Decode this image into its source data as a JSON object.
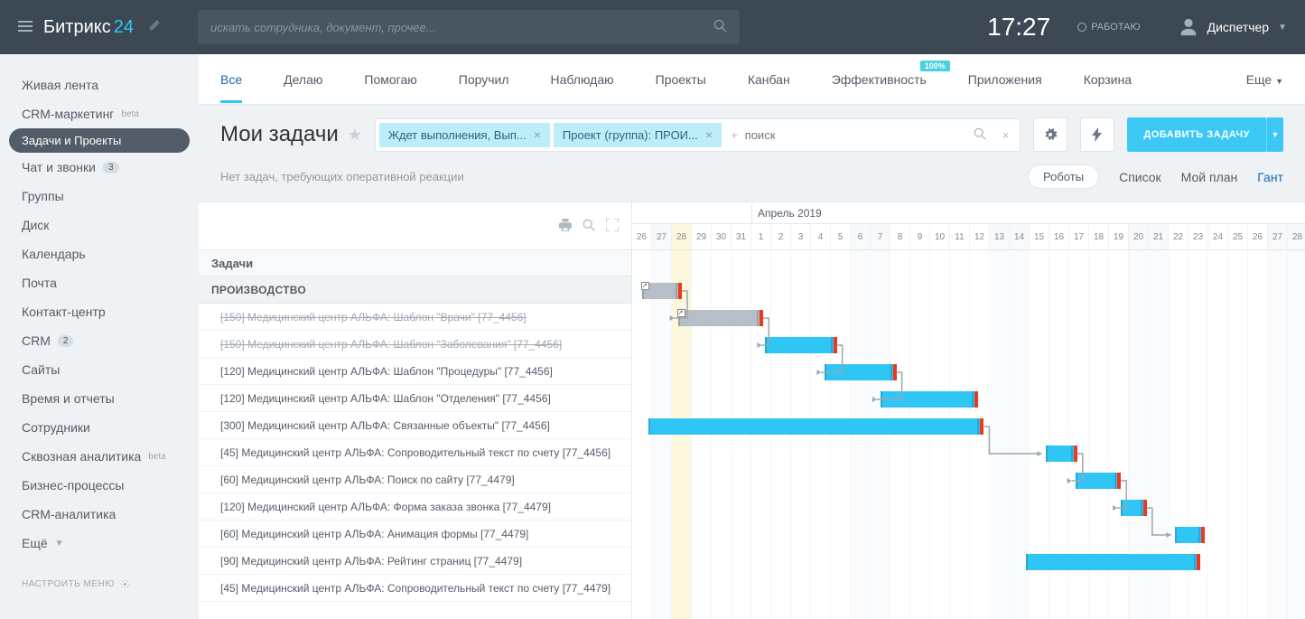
{
  "topbar": {
    "logo1": "Битрикс",
    "logo2": "24",
    "search_placeholder": "искать сотрудника, документ, прочее...",
    "time": "17:27",
    "work_status": "РАБОТАЮ",
    "user": "Диспетчер"
  },
  "sidebar": {
    "items": [
      {
        "label": "Живая лента"
      },
      {
        "label": "CRM-маркетинг",
        "beta": "beta"
      },
      {
        "label": "Задачи и Проекты",
        "active": true
      },
      {
        "label": "Чат и звонки",
        "badge": "3"
      },
      {
        "label": "Группы"
      },
      {
        "label": "Диск"
      },
      {
        "label": "Календарь"
      },
      {
        "label": "Почта"
      },
      {
        "label": "Контакт-центр"
      },
      {
        "label": "CRM",
        "badge": "2"
      },
      {
        "label": "Сайты"
      },
      {
        "label": "Время и отчеты"
      },
      {
        "label": "Сотрудники"
      },
      {
        "label": "Сквозная аналитика",
        "beta": "beta"
      },
      {
        "label": "Бизнес-процессы"
      },
      {
        "label": "CRM-аналитика"
      },
      {
        "label": "Ещё"
      }
    ],
    "footer": "НАСТРОИТЬ МЕНЮ"
  },
  "tabs": [
    {
      "label": "Все",
      "active": true
    },
    {
      "label": "Делаю"
    },
    {
      "label": "Помогаю"
    },
    {
      "label": "Поручил"
    },
    {
      "label": "Наблюдаю"
    },
    {
      "label": "Проекты"
    },
    {
      "label": "Канбан"
    },
    {
      "label": "Эффективность",
      "pct": "100%"
    },
    {
      "label": "Приложения"
    },
    {
      "label": "Корзина"
    }
  ],
  "tabs_more": "Еще",
  "toolbar": {
    "title": "Мои задачи",
    "chip1": "Ждет выполнения, Вып...",
    "chip2": "Проект (группа): ПРОИ...",
    "search_placeholder": "поиск",
    "add_btn": "ДОБАВИТЬ ЗАДАЧУ"
  },
  "subhead": {
    "text": "Нет задач, требующих оперативной реакции",
    "robots": "Роботы",
    "v1": "Список",
    "v2": "Мой план",
    "v3": "Гант"
  },
  "gantt": {
    "left_title": "Задачи",
    "group": "ПРОИЗВОДСТВО",
    "tasks": [
      {
        "label": "[150] Медицинский центр АЛЬФА: Шаблон \"Врачи\" [77_4456]",
        "done": true
      },
      {
        "label": "[150] Медицинский центр АЛЬФА: Шаблон \"Заболевания\" [77_4456]",
        "done": true
      },
      {
        "label": "[120] Медицинский центр АЛЬФА: Шаблон \"Процедуры\" [77_4456]"
      },
      {
        "label": "[120] Медицинский центр АЛЬФА: Шаблон \"Отделения\" [77_4456]"
      },
      {
        "label": "[300] Медицинский центр АЛЬФА: Связанные объекты\" [77_4456]"
      },
      {
        "label": "[45] Медицинский центр АЛЬФА: Сопроводительный текст по счету [77_4456]"
      },
      {
        "label": "[60] Медицинский центр АЛЬФА: Поиск по сайту [77_4479]"
      },
      {
        "label": "[120] Медицинский центр АЛЬФА: Форма заказа звонка [77_4479]"
      },
      {
        "label": "[60] Медицинский центр АЛЬФА: Анимация формы [77_4479]"
      },
      {
        "label": "[90] Медицинский центр АЛЬФА: Рейтинг страниц [77_4479]"
      },
      {
        "label": "[45] Медицинский центр АЛЬФА: Сопроводительный текст по счету [77_4479]"
      }
    ],
    "month_label": "Апрель 2019",
    "day_width": 22,
    "days": [
      {
        "n": 26
      },
      {
        "n": 27,
        "wkd": true
      },
      {
        "n": 28,
        "wkd": true,
        "today": true
      },
      {
        "n": 29
      },
      {
        "n": 30
      },
      {
        "n": 31
      },
      {
        "n": 1
      },
      {
        "n": 2
      },
      {
        "n": 3
      },
      {
        "n": 4
      },
      {
        "n": 5
      },
      {
        "n": 6,
        "wkd": true
      },
      {
        "n": 7,
        "wkd": true
      },
      {
        "n": 8
      },
      {
        "n": 9
      },
      {
        "n": 10
      },
      {
        "n": 11
      },
      {
        "n": 12
      },
      {
        "n": 13,
        "wkd": true
      },
      {
        "n": 14,
        "wkd": true
      },
      {
        "n": 15
      },
      {
        "n": 16
      },
      {
        "n": 17
      },
      {
        "n": 18
      },
      {
        "n": 19
      },
      {
        "n": 20,
        "wkd": true
      },
      {
        "n": 21,
        "wkd": true
      },
      {
        "n": 22
      },
      {
        "n": 23
      },
      {
        "n": 24
      },
      {
        "n": 25
      },
      {
        "n": 26
      },
      {
        "n": 27,
        "wkd": true
      },
      {
        "n": 28,
        "wkd": true
      }
    ],
    "bars": [
      {
        "row": 0,
        "start": 0.5,
        "span": 2,
        "color": "grey",
        "link_icon": true
      },
      {
        "row": 1,
        "start": 2.3,
        "span": 4.3,
        "color": "grey",
        "link_icon": true
      },
      {
        "row": 2,
        "start": 6.7,
        "span": 3.6,
        "color": "blue"
      },
      {
        "row": 3,
        "start": 9.7,
        "span": 3.6,
        "color": "blue"
      },
      {
        "row": 4,
        "start": 12.5,
        "span": 4.9,
        "color": "blue"
      },
      {
        "row": 5,
        "start": 0.8,
        "span": 16.9,
        "color": "blue"
      },
      {
        "row": 6,
        "start": 20.8,
        "span": 1.6,
        "color": "blue"
      },
      {
        "row": 7,
        "start": 22.3,
        "span": 2.3,
        "color": "blue"
      },
      {
        "row": 8,
        "start": 24.6,
        "span": 1.3,
        "color": "blue"
      },
      {
        "row": 9,
        "start": 27.3,
        "span": 1.5,
        "color": "blue"
      },
      {
        "row": 10,
        "start": 19.8,
        "span": 8.8,
        "color": "blue"
      }
    ],
    "connectors": [
      {
        "from": 0,
        "to": 1
      },
      {
        "from": 1,
        "to": 2
      },
      {
        "from": 2,
        "to": 3
      },
      {
        "from": 3,
        "to": 4
      },
      {
        "from": 5,
        "to": 6
      },
      {
        "from": 6,
        "to": 7
      },
      {
        "from": 7,
        "to": 8
      },
      {
        "from": 8,
        "to": 9
      }
    ],
    "colors": {
      "blue": "#2fc6f6",
      "grey": "#b6bec7",
      "end": "#f1361a"
    },
    "month_offset_days": 6
  }
}
